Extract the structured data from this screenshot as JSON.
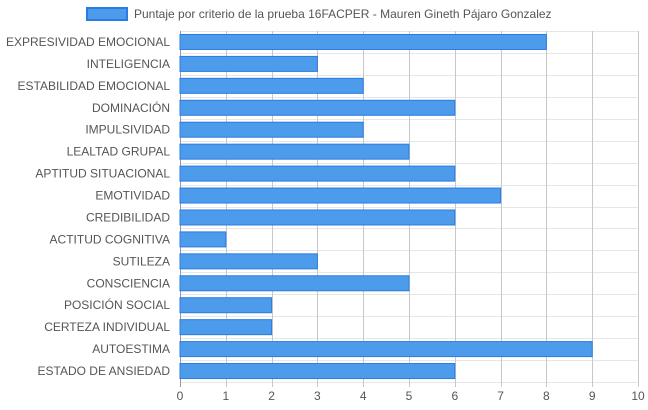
{
  "chart_data": {
    "type": "bar",
    "orientation": "horizontal",
    "categories": [
      "EXPRESIVIDAD EMOCIONAL",
      "INTELIGENCIA",
      "ESTABILIDAD EMOCIONAL",
      "DOMINACIÓN",
      "IMPULSIVIDAD",
      "LEALTAD GRUPAL",
      "APTITUD SITUACIONAL",
      "EMOTIVIDAD",
      "CREDIBILIDAD",
      "ACTITUD COGNITIVA",
      "SUTILEZA",
      "CONSCIENCIA",
      "POSICIÓN SOCIAL",
      "CERTEZA INDIVIDUAL",
      "AUTOESTIMA",
      "ESTADO DE ANSIEDAD"
    ],
    "series": [
      {
        "name": "Puntaje por criterio de la prueba 16FACPER - Mauren Gineth Pájaro Gonzalez",
        "values": [
          8,
          3,
          4,
          6,
          4,
          5,
          6,
          7,
          6,
          1,
          3,
          5,
          2,
          2,
          9,
          6
        ],
        "color": "#4d9cec",
        "border_color": "#2a7be4"
      }
    ],
    "xlim": [
      0,
      10
    ],
    "xticks": [
      "0",
      "1",
      "2",
      "3",
      "4",
      "5",
      "6",
      "7",
      "8",
      "9",
      "10"
    ],
    "grid": true,
    "legend_position": "top"
  }
}
